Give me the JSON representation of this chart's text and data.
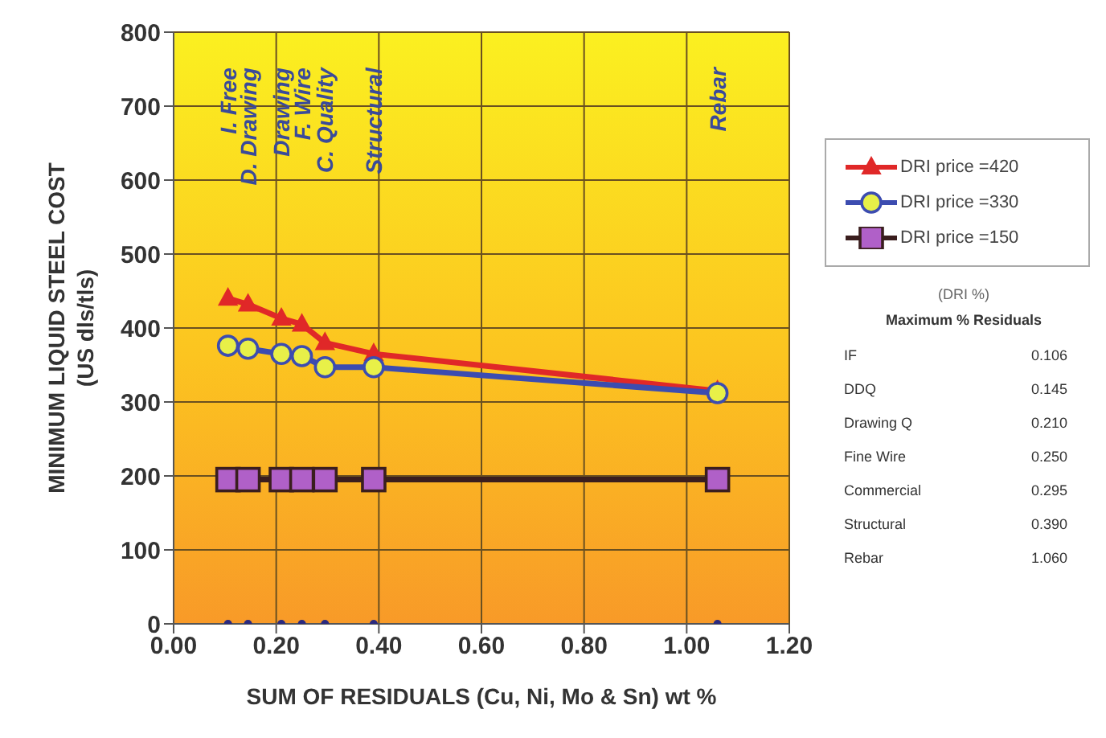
{
  "chart_data": {
    "type": "line",
    "xlabel": "SUM OF RESIDUALS (Cu, Ni, Mo & Sn) wt %",
    "ylabel": "MINIMUM LIQUID STEEL COST\n(US dls/tls)",
    "x": [
      0.106,
      0.145,
      0.21,
      0.25,
      0.295,
      0.39,
      1.06
    ],
    "series": [
      {
        "name": "DRI price =420",
        "color": "#e02828",
        "marker": "triangle",
        "values": [
          440,
          432,
          413,
          405,
          380,
          365,
          315
        ]
      },
      {
        "name": "DRI price =330",
        "color": "#3c4cb0",
        "marker": "circle",
        "values": [
          376,
          372,
          365,
          362,
          347,
          347,
          312
        ]
      },
      {
        "name": "DRI price =150",
        "color": "#3a1e1e",
        "marker": "square",
        "values": [
          195,
          195,
          195,
          195,
          195,
          195,
          195
        ]
      },
      {
        "type": "scatter",
        "color": "#2a2a80",
        "marker": "circle",
        "values": [
          0,
          0,
          0,
          0,
          0,
          0,
          0
        ]
      }
    ],
    "xlim": [
      0,
      1.2
    ],
    "xticks": [
      {
        "value": 0,
        "label": "0.00"
      },
      {
        "value": 0.2,
        "label": "0.20"
      },
      {
        "value": 0.4,
        "label": "0.40"
      },
      {
        "value": 0.6,
        "label": "0.60"
      },
      {
        "value": 0.8,
        "label": "0.80"
      },
      {
        "value": 1,
        "label": "1.00"
      },
      {
        "value": 1.2,
        "label": "1.20"
      }
    ],
    "ylim": [
      0,
      800
    ],
    "yticks": [
      0,
      100,
      200,
      300,
      400,
      500,
      600,
      700,
      800
    ],
    "grid": true,
    "legend": "right",
    "line_style": "solid",
    "annotations": [
      "I. Free",
      "D. Drawing",
      "Drawing",
      "F. Wire",
      "C. Quality",
      "Structural",
      "Rebar",
      "(DRI %)",
      "Maximum % Residuals",
      "IF",
      "0.106",
      "DDQ",
      "0.145",
      "Drawing Q",
      "0.210",
      "Fine Wire",
      "0.250",
      "Commercial",
      "0.295",
      "Structural",
      "0.390",
      "Rebar",
      "1.060"
    ]
  }
}
